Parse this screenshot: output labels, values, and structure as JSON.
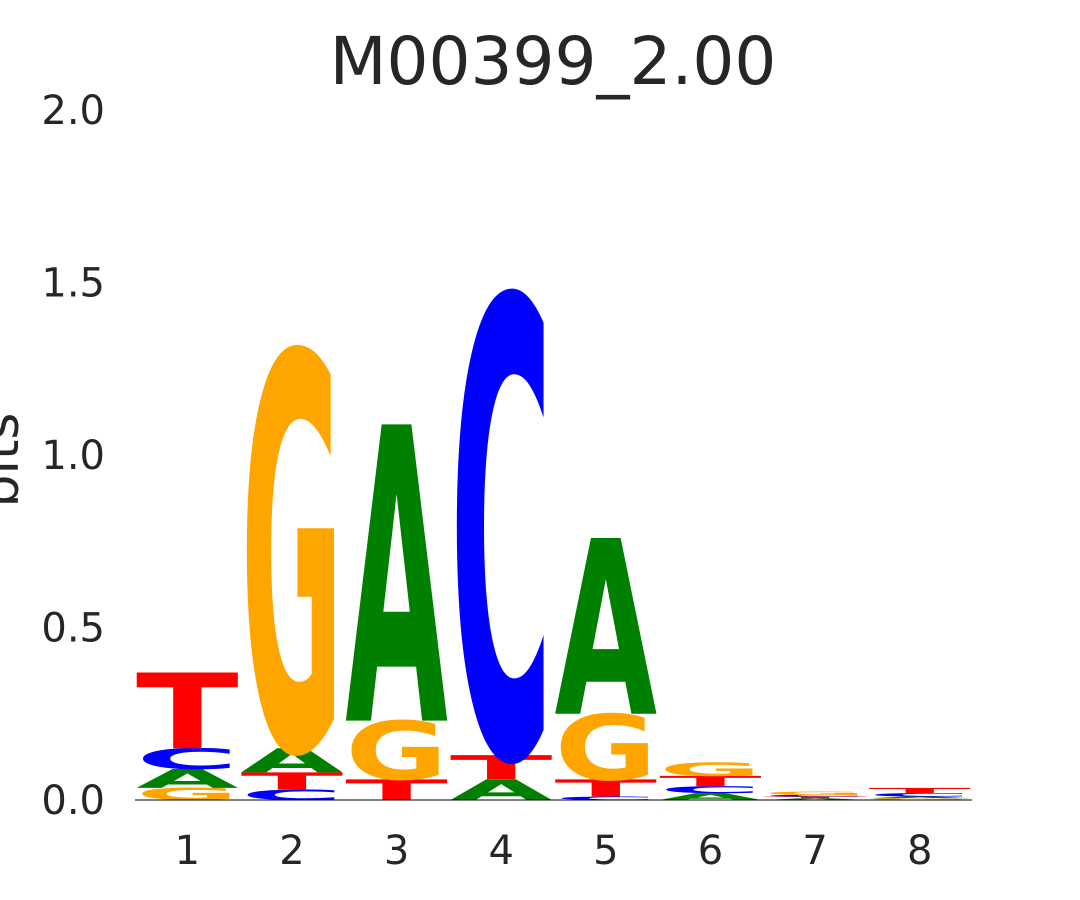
{
  "chart_data": {
    "type": "sequence-logo",
    "title": "M00399_2.00",
    "ylabel": "bits",
    "ylim": [
      0,
      2.0
    ],
    "yticks": [
      "0.0",
      "0.5",
      "1.0",
      "1.5",
      "2.0"
    ],
    "xticks": [
      "1",
      "2",
      "3",
      "4",
      "5",
      "6",
      "7",
      "8"
    ],
    "grid": false,
    "colors": {
      "A": "#008000",
      "C": "#0000ff",
      "G": "#ffa500",
      "T": "#ff0000"
    },
    "positions": [
      {
        "label": "1",
        "stack": [
          {
            "base": "G",
            "value": 0.035
          },
          {
            "base": "A",
            "value": 0.055
          },
          {
            "base": "C",
            "value": 0.06
          },
          {
            "base": "T",
            "value": 0.22
          }
        ]
      },
      {
        "label": "2",
        "stack": [
          {
            "base": "C",
            "value": 0.03
          },
          {
            "base": "T",
            "value": 0.05
          },
          {
            "base": "A",
            "value": 0.07
          },
          {
            "base": "G",
            "value": 1.15
          }
        ]
      },
      {
        "label": "3",
        "stack": [
          {
            "base": "T",
            "value": 0.06
          },
          {
            "base": "G",
            "value": 0.17
          },
          {
            "base": "A",
            "value": 0.86
          }
        ]
      },
      {
        "label": "4",
        "stack": [
          {
            "base": "A",
            "value": 0.06
          },
          {
            "base": "T",
            "value": 0.07
          },
          {
            "base": "C",
            "value": 1.33
          }
        ]
      },
      {
        "label": "5",
        "stack": [
          {
            "base": "C",
            "value": 0.01
          },
          {
            "base": "T",
            "value": 0.05
          },
          {
            "base": "G",
            "value": 0.19
          },
          {
            "base": "A",
            "value": 0.51
          }
        ]
      },
      {
        "label": "6",
        "stack": [
          {
            "base": "A",
            "value": 0.02
          },
          {
            "base": "C",
            "value": 0.02
          },
          {
            "base": "T",
            "value": 0.03
          },
          {
            "base": "G",
            "value": 0.04
          }
        ]
      },
      {
        "label": "7",
        "stack": [
          {
            "base": "A",
            "value": 0.005
          },
          {
            "base": "T",
            "value": 0.005
          },
          {
            "base": "C",
            "value": 0.005
          },
          {
            "base": "G",
            "value": 0.01
          }
        ]
      },
      {
        "label": "8",
        "stack": [
          {
            "base": "G",
            "value": 0.005
          },
          {
            "base": "A",
            "value": 0.005
          },
          {
            "base": "C",
            "value": 0.01
          },
          {
            "base": "T",
            "value": 0.015
          }
        ]
      }
    ]
  }
}
